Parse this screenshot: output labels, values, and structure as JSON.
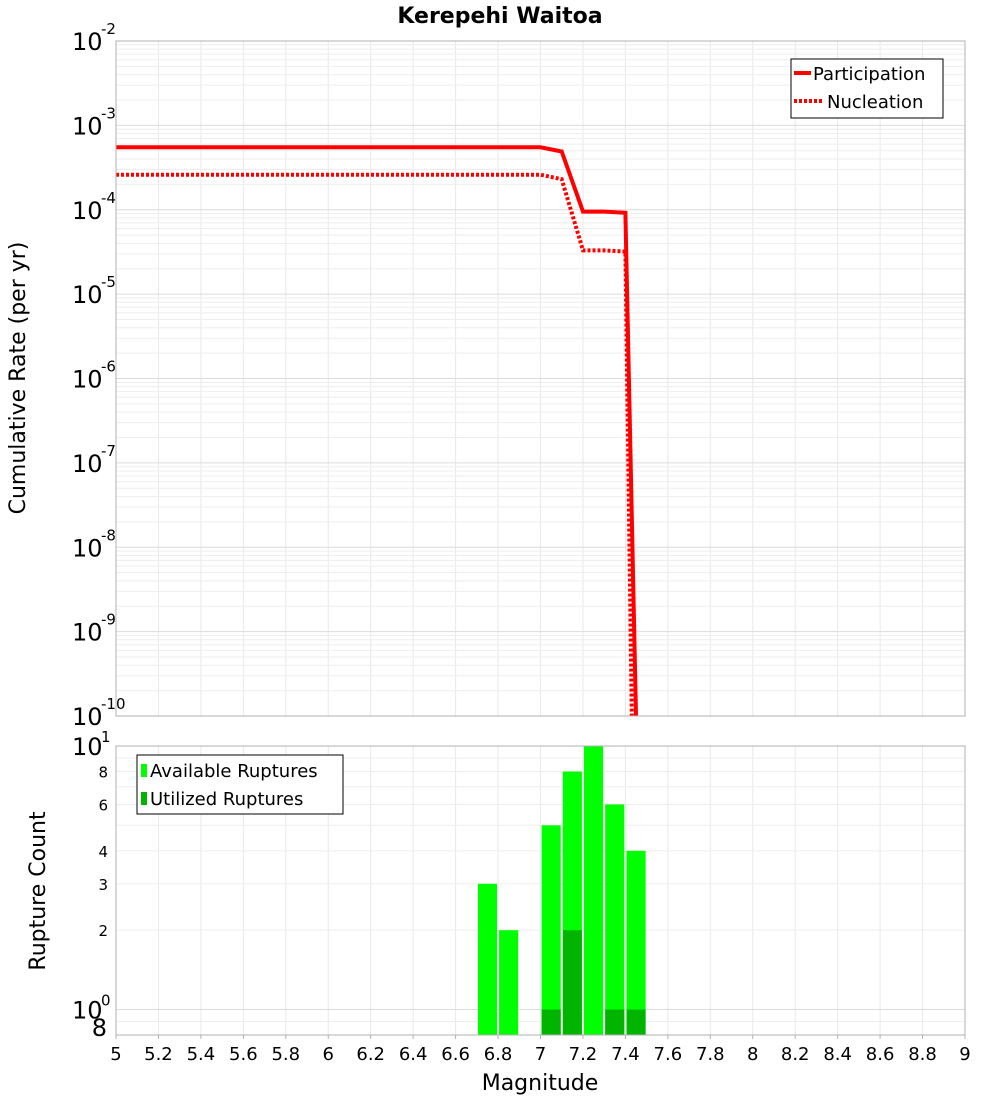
{
  "chart_data": [
    {
      "type": "line",
      "title": "Kerepehi Waitoa",
      "ylabel": "Cumulative Rate (per yr)",
      "xlabel": "",
      "xlim": [
        5,
        9
      ],
      "ylim": [
        1e-10,
        0.01
      ],
      "yscale": "log",
      "grid": true,
      "legend": "top-right",
      "yticks": [
        {
          "base": "10",
          "exp": "-2"
        },
        {
          "base": "10",
          "exp": "-3"
        },
        {
          "base": "10",
          "exp": "-4"
        },
        {
          "base": "10",
          "exp": "-5"
        },
        {
          "base": "10",
          "exp": "-6"
        },
        {
          "base": "10",
          "exp": "-7"
        },
        {
          "base": "10",
          "exp": "-8"
        },
        {
          "base": "10",
          "exp": "-9"
        },
        {
          "base": "10",
          "exp": "-10"
        }
      ],
      "series": [
        {
          "name": "Participation",
          "color": "#ff0000",
          "style": "solid",
          "x": [
            5.0,
            7.0,
            7.1,
            7.2,
            7.3,
            7.4,
            7.45
          ],
          "y": [
            0.00055,
            0.00055,
            0.00049,
            9.5e-05,
            9.5e-05,
            9.2e-05,
            1e-10
          ]
        },
        {
          "name": "Nucleation",
          "color": "#ff0000",
          "style": "dotted",
          "x": [
            5.0,
            7.0,
            7.1,
            7.2,
            7.3,
            7.4,
            7.43
          ],
          "y": [
            0.00026,
            0.00026,
            0.00023,
            3.3e-05,
            3.3e-05,
            3.2e-05,
            1e-10
          ]
        }
      ]
    },
    {
      "type": "bar",
      "title": "",
      "ylabel": "Rupture Count",
      "xlabel": "Magnitude",
      "xlim": [
        5,
        9
      ],
      "ylim": [
        0.8,
        10
      ],
      "yscale": "log",
      "grid": true,
      "legend": "top-left",
      "xticks": [
        "5",
        "5.2",
        "5.4",
        "5.6",
        "5.8",
        "6",
        "6.2",
        "6.4",
        "6.6",
        "6.8",
        "7",
        "7.2",
        "7.4",
        "7.6",
        "7.8",
        "8",
        "8.2",
        "8.4",
        "8.6",
        "8.8",
        "9"
      ],
      "yticks": [
        {
          "value": 10,
          "base": "10",
          "exp": "1"
        },
        {
          "value": 8,
          "label": "8"
        },
        {
          "value": 6,
          "label": "6"
        },
        {
          "value": 4,
          "label": "4"
        },
        {
          "value": 3,
          "label": "3"
        },
        {
          "value": 2,
          "label": "2"
        },
        {
          "value": 1,
          "base": "10",
          "exp": "0"
        },
        {
          "value": 0.8,
          "label": "8"
        }
      ],
      "x": [
        6.75,
        6.85,
        7.05,
        7.15,
        7.25,
        7.35,
        7.45
      ],
      "series": [
        {
          "name": "Available Ruptures",
          "color": "#00ff00",
          "values": [
            3,
            2,
            5,
            8,
            10,
            6,
            4
          ]
        },
        {
          "name": "Utilized Ruptures",
          "color": "#00b400",
          "values": [
            0,
            0,
            1,
            2,
            0,
            1,
            1
          ]
        }
      ]
    }
  ]
}
